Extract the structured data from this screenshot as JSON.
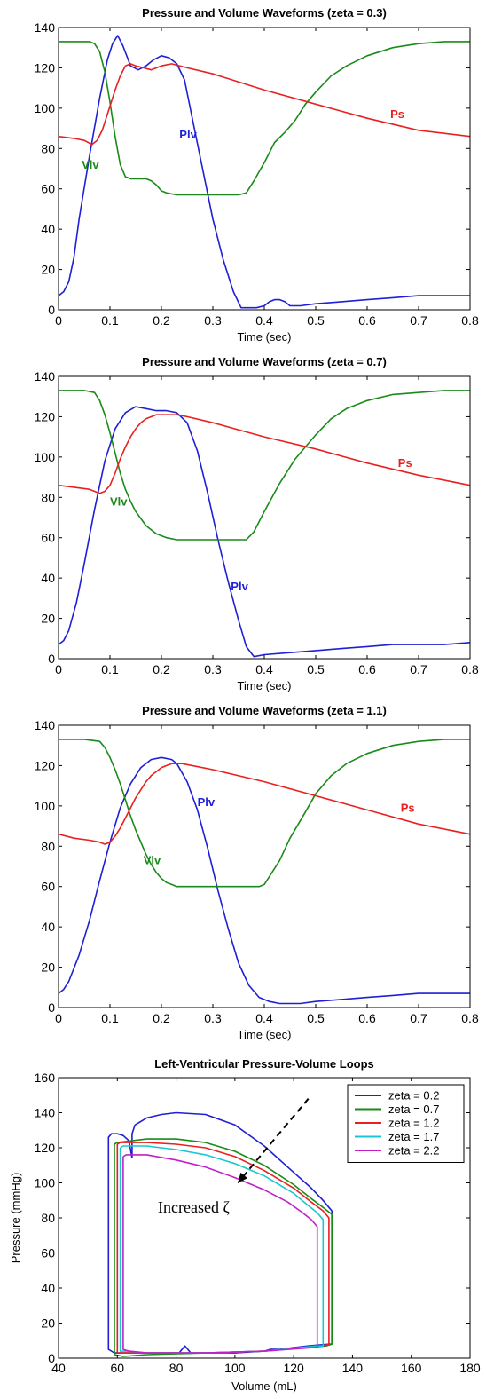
{
  "colors": {
    "blue": "#1f1fd6",
    "green": "#1a8a1a",
    "red": "#e82020",
    "cyan": "#17c8d0",
    "magenta": "#c020c8"
  },
  "chart_data": [
    {
      "type": "line",
      "title": "Pressure and Volume Waveforms (zeta = 0.3)",
      "xlabel": "Time (sec)",
      "ylabel": "",
      "xlim": [
        0,
        0.8
      ],
      "ylim": [
        0,
        140
      ],
      "xticks": [
        0,
        0.1,
        0.2,
        0.3,
        0.4,
        0.5,
        0.6,
        0.7,
        0.8
      ],
      "yticks": [
        0,
        20,
        40,
        60,
        80,
        100,
        120,
        140
      ],
      "series": [
        {
          "name": "Plv",
          "color": "blue",
          "label_at": [
            0.235,
            85
          ],
          "x": [
            0,
            0.01,
            0.02,
            0.03,
            0.04,
            0.06,
            0.08,
            0.095,
            0.105,
            0.115,
            0.125,
            0.14,
            0.155,
            0.17,
            0.185,
            0.2,
            0.215,
            0.23,
            0.245,
            0.26,
            0.28,
            0.3,
            0.32,
            0.34,
            0.355,
            0.37,
            0.385,
            0.4,
            0.41,
            0.42,
            0.43,
            0.44,
            0.45,
            0.47,
            0.5,
            0.55,
            0.6,
            0.65,
            0.7,
            0.75,
            0.8
          ],
          "y": [
            7,
            9,
            14,
            26,
            45,
            76,
            105,
            124,
            132,
            136,
            131,
            121,
            119,
            121,
            124,
            126,
            125,
            122,
            114,
            95,
            70,
            45,
            25,
            9,
            1,
            1,
            1,
            2,
            4,
            5,
            5,
            4,
            2,
            2,
            3,
            4,
            5,
            6,
            7,
            7,
            7
          ]
        },
        {
          "name": "Vlv",
          "color": "green",
          "label_at": [
            0.045,
            70
          ],
          "x": [
            0,
            0.03,
            0.06,
            0.07,
            0.08,
            0.09,
            0.1,
            0.11,
            0.12,
            0.13,
            0.14,
            0.15,
            0.16,
            0.17,
            0.18,
            0.19,
            0.2,
            0.21,
            0.23,
            0.25,
            0.3,
            0.35,
            0.365,
            0.38,
            0.4,
            0.42,
            0.44,
            0.46,
            0.48,
            0.5,
            0.53,
            0.56,
            0.6,
            0.65,
            0.7,
            0.75,
            0.8
          ],
          "y": [
            133,
            133,
            133,
            132,
            128,
            118,
            103,
            86,
            72,
            66,
            65,
            65,
            65,
            65,
            64,
            62,
            59,
            58,
            57,
            57,
            57,
            57,
            58,
            64,
            73,
            83,
            88,
            94,
            102,
            108,
            116,
            121,
            126,
            130,
            132,
            133,
            133
          ]
        },
        {
          "name": "Ps",
          "color": "red",
          "label_at": [
            0.645,
            95
          ],
          "x": [
            0,
            0.03,
            0.05,
            0.065,
            0.075,
            0.085,
            0.095,
            0.11,
            0.12,
            0.13,
            0.14,
            0.15,
            0.165,
            0.18,
            0.2,
            0.22,
            0.25,
            0.3,
            0.4,
            0.5,
            0.6,
            0.7,
            0.8
          ],
          "y": [
            86,
            85,
            84,
            82,
            84,
            89,
            97,
            109,
            116,
            121,
            122,
            121,
            120,
            119,
            121,
            122,
            120,
            117,
            109,
            102,
            95,
            89,
            86
          ]
        }
      ]
    },
    {
      "type": "line",
      "title": "Pressure and Volume Waveforms (zeta = 0.7)",
      "xlabel": "Time (sec)",
      "ylabel": "",
      "xlim": [
        0,
        0.8
      ],
      "ylim": [
        0,
        140
      ],
      "xticks": [
        0,
        0.1,
        0.2,
        0.3,
        0.4,
        0.5,
        0.6,
        0.7,
        0.8
      ],
      "yticks": [
        0,
        20,
        40,
        60,
        80,
        100,
        120,
        140
      ],
      "series": [
        {
          "name": "Plv",
          "color": "blue",
          "label_at": [
            0.335,
            34
          ],
          "x": [
            0,
            0.01,
            0.02,
            0.035,
            0.05,
            0.07,
            0.09,
            0.11,
            0.13,
            0.15,
            0.17,
            0.19,
            0.21,
            0.23,
            0.25,
            0.27,
            0.29,
            0.31,
            0.33,
            0.35,
            0.365,
            0.38,
            0.4,
            0.45,
            0.5,
            0.55,
            0.6,
            0.65,
            0.7,
            0.75,
            0.8
          ],
          "y": [
            7,
            9,
            14,
            28,
            47,
            74,
            98,
            114,
            122,
            125,
            124,
            123,
            123,
            122,
            117,
            103,
            82,
            59,
            38,
            19,
            6,
            1,
            2,
            3,
            4,
            5,
            6,
            7,
            7,
            7,
            8
          ]
        },
        {
          "name": "Vlv",
          "color": "green",
          "label_at": [
            0.1,
            76
          ],
          "x": [
            0,
            0.05,
            0.07,
            0.08,
            0.09,
            0.1,
            0.11,
            0.12,
            0.13,
            0.14,
            0.15,
            0.17,
            0.19,
            0.21,
            0.23,
            0.25,
            0.3,
            0.35,
            0.365,
            0.38,
            0.4,
            0.43,
            0.46,
            0.5,
            0.53,
            0.56,
            0.6,
            0.65,
            0.7,
            0.75,
            0.8
          ],
          "y": [
            133,
            133,
            132,
            128,
            121,
            112,
            102,
            92,
            84,
            78,
            73,
            66,
            62,
            60,
            59,
            59,
            59,
            59,
            59,
            63,
            73,
            87,
            99,
            111,
            119,
            124,
            128,
            131,
            132,
            133,
            133
          ]
        },
        {
          "name": "Ps",
          "color": "red",
          "label_at": [
            0.66,
            95
          ],
          "x": [
            0,
            0.03,
            0.06,
            0.08,
            0.09,
            0.1,
            0.11,
            0.12,
            0.13,
            0.14,
            0.15,
            0.16,
            0.17,
            0.19,
            0.21,
            0.23,
            0.25,
            0.3,
            0.4,
            0.5,
            0.6,
            0.7,
            0.8
          ],
          "y": [
            86,
            85,
            84,
            82,
            83,
            86,
            92,
            99,
            105,
            110,
            114,
            117,
            119,
            121,
            121,
            121,
            120,
            117,
            110,
            104,
            97,
            91,
            86
          ]
        }
      ]
    },
    {
      "type": "line",
      "title": "Pressure and Volume Waveforms (zeta = 1.1)",
      "xlabel": "Time (sec)",
      "ylabel": "",
      "xlim": [
        0,
        0.8
      ],
      "ylim": [
        0,
        140
      ],
      "xticks": [
        0,
        0.1,
        0.2,
        0.3,
        0.4,
        0.5,
        0.6,
        0.7,
        0.8
      ],
      "yticks": [
        0,
        20,
        40,
        60,
        80,
        100,
        120,
        140
      ],
      "series": [
        {
          "name": "Plv",
          "color": "blue",
          "label_at": [
            0.27,
            100
          ],
          "x": [
            0,
            0.01,
            0.02,
            0.04,
            0.06,
            0.08,
            0.1,
            0.12,
            0.14,
            0.16,
            0.18,
            0.2,
            0.22,
            0.23,
            0.25,
            0.27,
            0.29,
            0.31,
            0.33,
            0.35,
            0.37,
            0.39,
            0.41,
            0.43,
            0.45,
            0.47,
            0.5,
            0.55,
            0.6,
            0.65,
            0.7,
            0.75,
            0.8
          ],
          "y": [
            7,
            9,
            13,
            26,
            43,
            63,
            82,
            99,
            111,
            119,
            123,
            124,
            123,
            121,
            112,
            98,
            79,
            58,
            39,
            22,
            11,
            5,
            3,
            2,
            2,
            2,
            3,
            4,
            5,
            6,
            7,
            7,
            7
          ]
        },
        {
          "name": "Vlv",
          "color": "green",
          "label_at": [
            0.165,
            71
          ],
          "x": [
            0,
            0.05,
            0.08,
            0.09,
            0.1,
            0.11,
            0.12,
            0.13,
            0.14,
            0.15,
            0.16,
            0.17,
            0.18,
            0.19,
            0.2,
            0.21,
            0.22,
            0.23,
            0.25,
            0.3,
            0.35,
            0.39,
            0.4,
            0.41,
            0.43,
            0.45,
            0.48,
            0.5,
            0.53,
            0.56,
            0.6,
            0.65,
            0.7,
            0.75,
            0.8
          ],
          "y": [
            133,
            133,
            132,
            129,
            124,
            118,
            111,
            103,
            95,
            88,
            82,
            76,
            71,
            67,
            64,
            62,
            61,
            60,
            60,
            60,
            60,
            60,
            61,
            65,
            73,
            84,
            97,
            106,
            115,
            121,
            126,
            130,
            132,
            133,
            133
          ]
        },
        {
          "name": "Ps",
          "color": "red",
          "label_at": [
            0.665,
            97
          ],
          "x": [
            0,
            0.03,
            0.06,
            0.08,
            0.09,
            0.1,
            0.11,
            0.12,
            0.13,
            0.14,
            0.15,
            0.16,
            0.17,
            0.18,
            0.19,
            0.2,
            0.21,
            0.22,
            0.24,
            0.3,
            0.4,
            0.5,
            0.6,
            0.7,
            0.8
          ],
          "y": [
            86,
            84,
            83,
            82,
            81,
            82,
            85,
            89,
            94,
            99,
            104,
            108,
            112,
            115,
            117,
            119,
            120,
            121,
            121,
            118,
            112,
            105,
            98,
            91,
            86
          ]
        }
      ]
    },
    {
      "type": "line",
      "title": "Left-Ventricular Pressure-Volume Loops",
      "xlabel": "Volume (mL)",
      "ylabel": "Pressure (mmHg)",
      "xlim": [
        40,
        180
      ],
      "ylim": [
        0,
        160
      ],
      "xticks": [
        40,
        60,
        80,
        100,
        120,
        140,
        160,
        180
      ],
      "yticks": [
        0,
        20,
        40,
        60,
        80,
        100,
        120,
        140,
        160
      ],
      "legend": "top-right",
      "annotation": {
        "text": "Increased ζ",
        "text_at": [
          86,
          83
        ],
        "arrow_from": [
          125,
          148
        ],
        "arrow_to": [
          101,
          100
        ]
      },
      "series": [
        {
          "name": "zeta = 0.2",
          "color": "blue",
          "x": [
            65,
            65,
            66,
            70,
            75,
            80,
            90,
            100,
            110,
            120,
            126,
            130,
            132,
            133,
            133,
            132,
            125,
            115,
            112,
            110,
            100,
            90,
            85,
            83,
            81,
            70,
            62,
            59,
            57,
            57,
            57,
            58,
            60,
            62,
            64,
            65
          ],
          "y": [
            114,
            128,
            133,
            137,
            139,
            140,
            139,
            133,
            121,
            106,
            97,
            90,
            86,
            84,
            8,
            8,
            7,
            5,
            5,
            4,
            3,
            3,
            3,
            7,
            3,
            3,
            3,
            3,
            5,
            60,
            126,
            128,
            128,
            127,
            124,
            114
          ]
        },
        {
          "name": "zeta = 0.7",
          "color": "green",
          "x": [
            59,
            60,
            65,
            70,
            80,
            90,
            100,
            110,
            120,
            126,
            130,
            133,
            133,
            131,
            110,
            90,
            70,
            62,
            59,
            59,
            59
          ],
          "y": [
            122,
            123,
            124,
            125,
            125,
            123,
            118,
            110,
            99,
            91,
            86,
            82,
            8,
            7,
            4,
            3,
            2,
            1,
            2,
            60,
            122
          ]
        },
        {
          "name": "zeta = 1.2",
          "color": "red",
          "x": [
            60,
            61,
            65,
            70,
            80,
            90,
            100,
            110,
            120,
            126,
            130,
            132,
            132,
            130,
            110,
            90,
            70,
            62,
            60,
            60,
            60
          ],
          "y": [
            122,
            123,
            123,
            123,
            122,
            120,
            115,
            107,
            97,
            89,
            84,
            80,
            8,
            7,
            4,
            3,
            3,
            3,
            3,
            60,
            122
          ]
        },
        {
          "name": "zeta = 1.7",
          "color": "cyan",
          "x": [
            61,
            62,
            65,
            70,
            80,
            90,
            100,
            110,
            120,
            125,
            128,
            130,
            130,
            128,
            110,
            90,
            70,
            63,
            61,
            61,
            61
          ],
          "y": [
            120,
            121,
            121,
            121,
            119,
            116,
            111,
            104,
            94,
            87,
            83,
            79,
            7,
            7,
            4,
            3,
            3,
            4,
            4,
            60,
            120
          ]
        },
        {
          "name": "zeta = 2.2",
          "color": "magenta",
          "x": [
            62,
            63,
            66,
            70,
            80,
            90,
            100,
            110,
            118,
            123,
            126,
            128,
            128,
            126,
            110,
            90,
            70,
            64,
            62,
            62,
            62
          ],
          "y": [
            115,
            116,
            116,
            116,
            113,
            109,
            103,
            96,
            89,
            83,
            79,
            75,
            6,
            6,
            4,
            3,
            3,
            4,
            5,
            60,
            115
          ]
        }
      ]
    }
  ]
}
